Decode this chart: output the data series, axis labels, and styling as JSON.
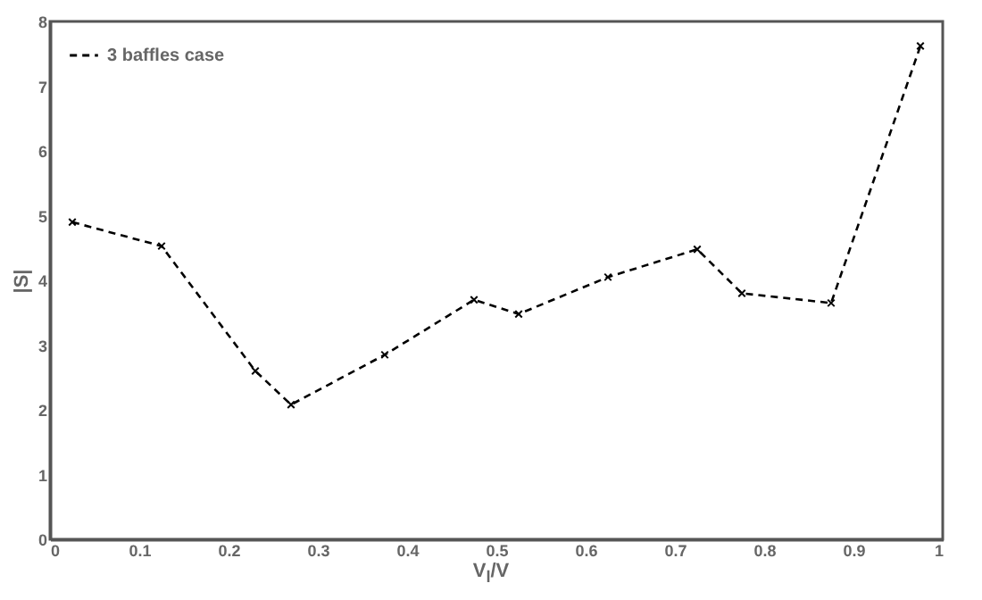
{
  "chart_data": {
    "type": "line",
    "xlabel": "V$_{l}$/V",
    "ylabel": "|S|",
    "x": [
      0.025,
      0.125,
      0.23,
      0.27,
      0.375,
      0.475,
      0.525,
      0.625,
      0.725,
      0.775,
      0.875,
      0.975
    ],
    "series": [
      {
        "name": "3 baffles case",
        "color": "#000000",
        "values": [
          4.9,
          4.53,
          2.6,
          2.08,
          2.85,
          3.7,
          3.48,
          4.05,
          4.48,
          3.8,
          3.65,
          7.62
        ]
      }
    ],
    "xlim": [
      0,
      1
    ],
    "xticks": [
      0,
      0.1,
      0.2,
      0.3,
      0.4,
      0.5,
      0.6,
      0.7,
      0.8,
      0.9,
      1
    ],
    "ylim": [
      0,
      8
    ],
    "yticks": [
      0,
      1,
      2,
      3,
      4,
      5,
      6,
      7,
      8
    ],
    "grid": false,
    "legend": "top left",
    "marker": "cross",
    "line_style": "dashed"
  }
}
